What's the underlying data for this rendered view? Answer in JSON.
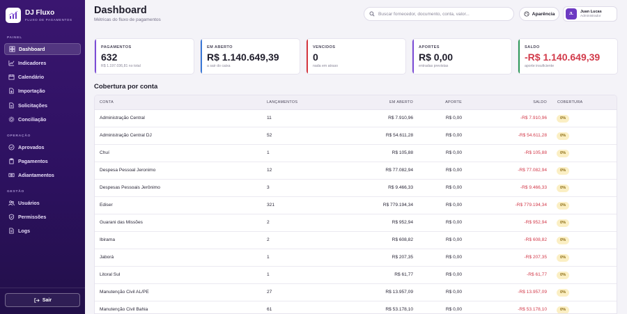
{
  "sidebar": {
    "brand_name": "DJ Fluxo",
    "brand_sub": "FLUXO DE PAGAMENTOS",
    "sections": {
      "painel": "PAINEL",
      "operacao": "OPERAÇÃO",
      "gestao": "GESTÃO"
    },
    "items": [
      {
        "label": "Dashboard",
        "icon": "dashboard-icon"
      },
      {
        "label": "Indicadores",
        "icon": "chart-icon"
      },
      {
        "label": "Calendário",
        "icon": "calendar-icon"
      },
      {
        "label": "Importação",
        "icon": "file-import-icon"
      },
      {
        "label": "Solicitações",
        "icon": "document-icon"
      },
      {
        "label": "Conciliação",
        "icon": "gear-icon"
      },
      {
        "label": "Aprovados",
        "icon": "check-circle-icon"
      },
      {
        "label": "Pagamentos",
        "icon": "clipboard-icon"
      },
      {
        "label": "Adiantamentos",
        "icon": "cash-icon"
      },
      {
        "label": "Usuários",
        "icon": "users-icon"
      },
      {
        "label": "Permissões",
        "icon": "shield-icon"
      },
      {
        "label": "Logs",
        "icon": "log-icon"
      }
    ],
    "logout_label": "Sair"
  },
  "header": {
    "title": "Dashboard",
    "subtitle": "Métricas do fluxo de pagamentos",
    "search_placeholder": "Buscar fornecedor, documento, conta, valor...",
    "theme_label": "Aparência",
    "user_initials": "JL",
    "user_name": "Juan Lucas",
    "user_role": "Administrador"
  },
  "stats": [
    {
      "label": "PAGAMENTOS",
      "value": "632",
      "note": "R$ 1.197.036,81 no total",
      "accent": "#7c4dd6"
    },
    {
      "label": "EM ABERTO",
      "value": "R$ 1.140.649,39",
      "note": "a sair do caixa",
      "accent": "#3a78d6"
    },
    {
      "label": "VENCIDOS",
      "value": "0",
      "note": "nada em atraso",
      "accent": "#d6383f"
    },
    {
      "label": "APORTES",
      "value": "R$ 0,00",
      "note": "entradas previstas",
      "accent": "#7c4dd6"
    },
    {
      "label": "SALDO",
      "value": "-R$ 1.140.649,39",
      "note": "aporte insuficiente",
      "accent": "#2e9a58",
      "value_color": "#d23a4a"
    }
  ],
  "table": {
    "title": "Cobertura por conta",
    "headers": {
      "conta": "CONTA",
      "lancamentos": "LANÇAMENTOS",
      "em_aberto": "EM ABERTO",
      "aporte": "APORTE",
      "saldo": "SALDO",
      "cobertura": "COBERTURA"
    },
    "rows": [
      {
        "conta": "Administração Central",
        "lancamentos": "11",
        "em_aberto": "R$ 7.910,96",
        "aporte": "R$ 0,00",
        "saldo": "-R$ 7.910,96",
        "cobertura": "0%"
      },
      {
        "conta": "Administração Central DJ",
        "lancamentos": "52",
        "em_aberto": "R$ 54.611,28",
        "aporte": "R$ 0,00",
        "saldo": "-R$ 54.611,28",
        "cobertura": "0%"
      },
      {
        "conta": "Chuí",
        "lancamentos": "1",
        "em_aberto": "R$ 105,88",
        "aporte": "R$ 0,00",
        "saldo": "-R$ 105,88",
        "cobertura": "0%"
      },
      {
        "conta": "Despesa Pessoal Jeronimo",
        "lancamentos": "12",
        "em_aberto": "R$ 77.082,94",
        "aporte": "R$ 0,00",
        "saldo": "-R$ 77.082,94",
        "cobertura": "0%"
      },
      {
        "conta": "Despesas Pessoais Jerônimo",
        "lancamentos": "3",
        "em_aberto": "R$ 9.466,33",
        "aporte": "R$ 0,00",
        "saldo": "-R$ 9.466,33",
        "cobertura": "0%"
      },
      {
        "conta": "Ediser",
        "lancamentos": "321",
        "em_aberto": "R$ 779.194,34",
        "aporte": "R$ 0,00",
        "saldo": "-R$ 779.194,34",
        "cobertura": "0%"
      },
      {
        "conta": "Guarani das Missões",
        "lancamentos": "2",
        "em_aberto": "R$ 952,94",
        "aporte": "R$ 0,00",
        "saldo": "-R$ 952,94",
        "cobertura": "0%"
      },
      {
        "conta": "Ibirama",
        "lancamentos": "2",
        "em_aberto": "R$ 608,82",
        "aporte": "R$ 0,00",
        "saldo": "-R$ 608,82",
        "cobertura": "0%"
      },
      {
        "conta": "Jaborá",
        "lancamentos": "1",
        "em_aberto": "R$ 207,35",
        "aporte": "R$ 0,00",
        "saldo": "-R$ 207,35",
        "cobertura": "0%"
      },
      {
        "conta": "Litoral Sul",
        "lancamentos": "1",
        "em_aberto": "R$ 61,77",
        "aporte": "R$ 0,00",
        "saldo": "-R$ 61,77",
        "cobertura": "0%"
      },
      {
        "conta": "Manutenção Civil AL/PE",
        "lancamentos": "27",
        "em_aberto": "R$ 13.957,09",
        "aporte": "R$ 0,00",
        "saldo": "-R$ 13.957,09",
        "cobertura": "0%"
      },
      {
        "conta": "Manutenção Civil Bahia",
        "lancamentos": "61",
        "em_aberto": "R$ 53.178,10",
        "aporte": "R$ 0,00",
        "saldo": "-R$ 53.178,10",
        "cobertura": "0%"
      }
    ]
  }
}
